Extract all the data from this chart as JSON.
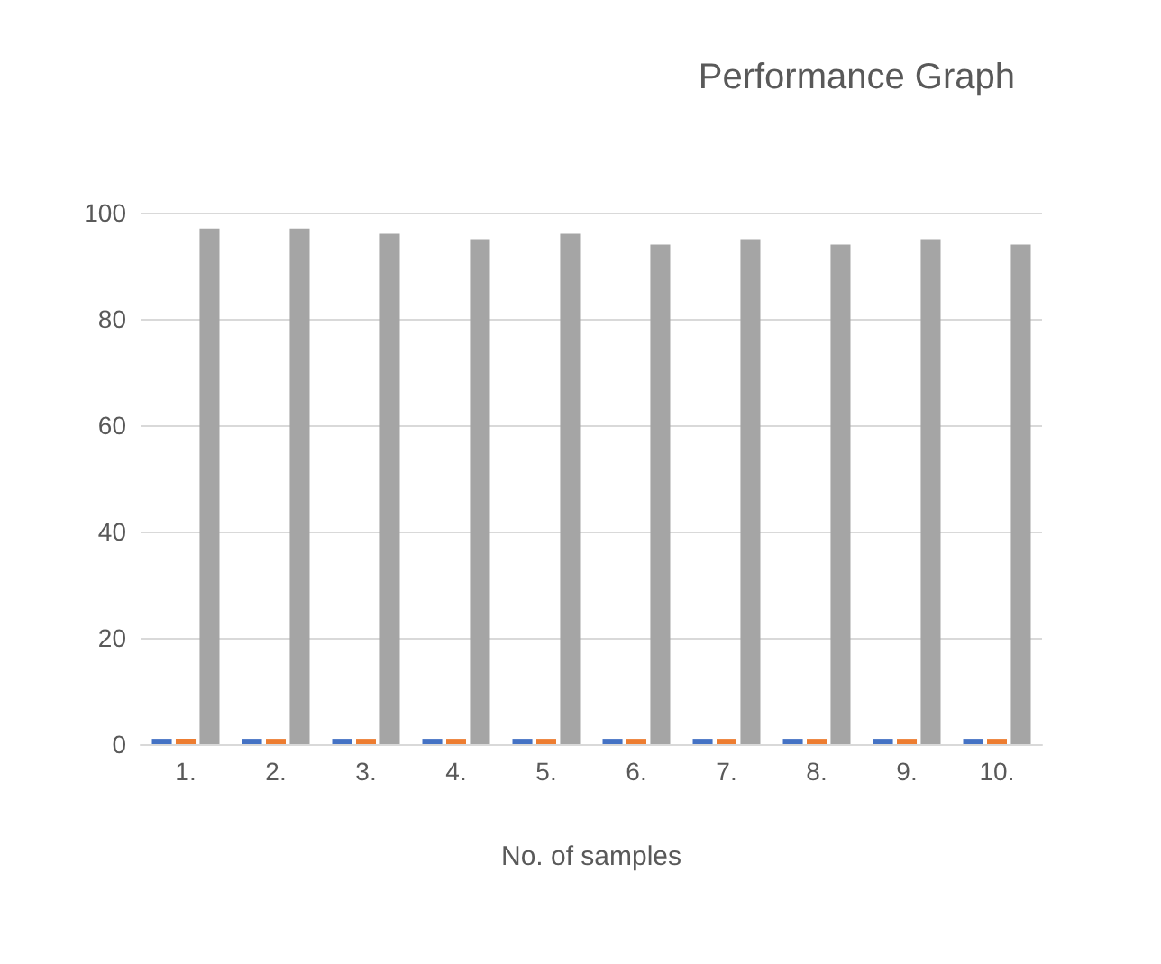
{
  "chart_data": {
    "type": "bar",
    "title": "Performance Graph",
    "xlabel": "No. of samples",
    "categories": [
      "1.",
      "2.",
      "3.",
      "4.",
      "5.",
      "6.",
      "7.",
      "8.",
      "9.",
      "10."
    ],
    "series": [
      {
        "color": "#4472c4",
        "values": [
          1,
          1,
          1,
          1,
          1,
          1,
          1,
          1,
          1,
          1
        ]
      },
      {
        "color": "#ed7d31",
        "values": [
          1,
          1,
          1,
          1,
          1,
          1,
          1,
          1,
          1,
          1
        ]
      },
      {
        "color": "#a5a5a5",
        "values": [
          97,
          97,
          96,
          95,
          96,
          94,
          95,
          94,
          95,
          94
        ]
      }
    ],
    "ylim": [
      0,
      100
    ],
    "yticks": [
      0,
      20,
      40,
      60,
      80,
      100
    ],
    "grid": "y"
  }
}
